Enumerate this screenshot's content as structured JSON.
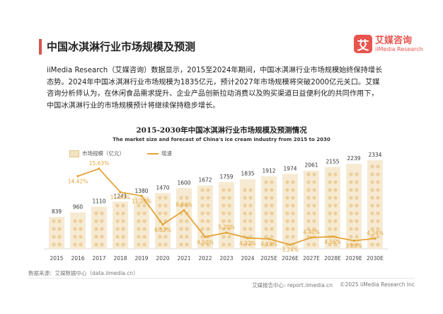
{
  "page": {
    "title": "中国冰淇淋行业市场规模及预测",
    "logo_mark": "艾",
    "logo_cn": "艾媒咨询",
    "logo_en": "iiMedia Research",
    "description": [
      "iiMedia Research（艾媒咨询）数据显示，2015至2024年期间，中国冰淇淋行业市场规模始终保持增长",
      "态势。2024年中国冰淇淋行业市场规模为1835亿元，预计2027年市场规模将突破2000亿元关口。艾媒",
      "咨询分析师认为，在休闲食品需求提升、企业产品创新拉动消费以及购买渠道日益便利化的共同作用下，",
      "中国冰淇淋行业的市场规模预计将继续保持稳步增长。"
    ],
    "source": "数据来源：艾媒数据中心（data.iimedia.cn）",
    "footer_center": "艾媒报告中心: report.iimedia.cn",
    "footer_right": "©2025  iiMedia Research  Inc"
  },
  "chart_data": {
    "type": "bar",
    "title": "2015-2030年中国冰淇淋行业市场规模及预测情况",
    "subtitle": "The market size and forecast of China's ice cream industry from 2015 to 2030",
    "categories": [
      "2015",
      "2016",
      "2017",
      "2018",
      "2019",
      "2020",
      "2021",
      "2022",
      "2023",
      "2024",
      "2025E",
      "2026E",
      "2027E",
      "2028E",
      "2029E",
      "2030E"
    ],
    "series": [
      {
        "name": "市场规模（亿元）",
        "type": "bar",
        "values": [
          839,
          960,
          1110,
          1241,
          1380,
          1470,
          1600,
          1672,
          1759,
          1835,
          1912,
          1974,
          2061,
          2155,
          2239,
          2334
        ]
      },
      {
        "name": "增速",
        "type": "line",
        "values": [
          null,
          14.42,
          15.63,
          11.8,
          11.2,
          6.52,
          8.84,
          4.5,
          5.2,
          4.32,
          4.19,
          3.24,
          4.4,
          4.56,
          3.89,
          4.24
        ],
        "labels": [
          "",
          "14.42%",
          "15.63%",
          "11.80%",
          "11.20%",
          "6.52%",
          "8.84%",
          "4.50%",
          "5.20%",
          "4.32%",
          "4.19%",
          "3.24%",
          "4.40%",
          "4.56%",
          "3.89%",
          "4.24%"
        ]
      }
    ],
    "legend_position": "top-left",
    "colors": {
      "bar_fill": "#f6ead2",
      "bar_icon": "#e8c68a",
      "line": "#e3a437",
      "line_label": "#e3a437"
    }
  }
}
